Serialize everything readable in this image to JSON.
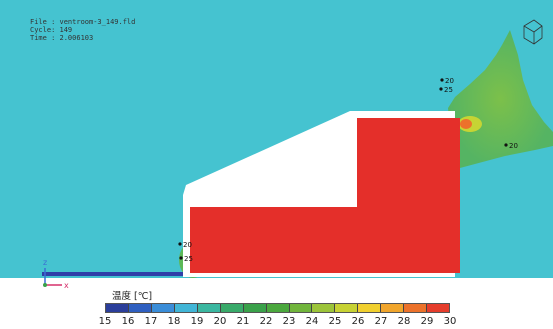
{
  "info": {
    "file_line": "File : ventroom-3_149.fld",
    "cycle_line": "Cycle: 149",
    "time_line": "Time : 2.006103"
  },
  "axes": {
    "z_label": "z",
    "x_label": "x"
  },
  "contour_labels": [
    {
      "id": "peak-upper-1",
      "text": "20"
    },
    {
      "id": "peak-upper-2",
      "text": "25"
    },
    {
      "id": "peak-right",
      "text": "20"
    },
    {
      "id": "corner-lower-1",
      "text": "20"
    },
    {
      "id": "corner-lower-2",
      "text": "25"
    }
  ],
  "legend": {
    "title": "温度 [℃]",
    "ticks": [
      "15",
      "16",
      "17",
      "18",
      "19",
      "20",
      "21",
      "22",
      "23",
      "24",
      "25",
      "26",
      "27",
      "28",
      "29",
      "30"
    ],
    "colors": [
      "#2b3e9a",
      "#2f5fc0",
      "#3a8dd8",
      "#41b5d6",
      "#3bb7a0",
      "#39aa6a",
      "#3aa14a",
      "#4ba83e",
      "#71b53c",
      "#9cc43a",
      "#c7d234",
      "#f1d02f",
      "#f0a52c",
      "#ec722b",
      "#e53d2c"
    ]
  },
  "colors": {
    "background": "#45c3d0",
    "hot": "#e42f2a",
    "warm_plume": "#5cb857",
    "interior": "#ffffff",
    "floor_line": "#2f3fa8"
  }
}
